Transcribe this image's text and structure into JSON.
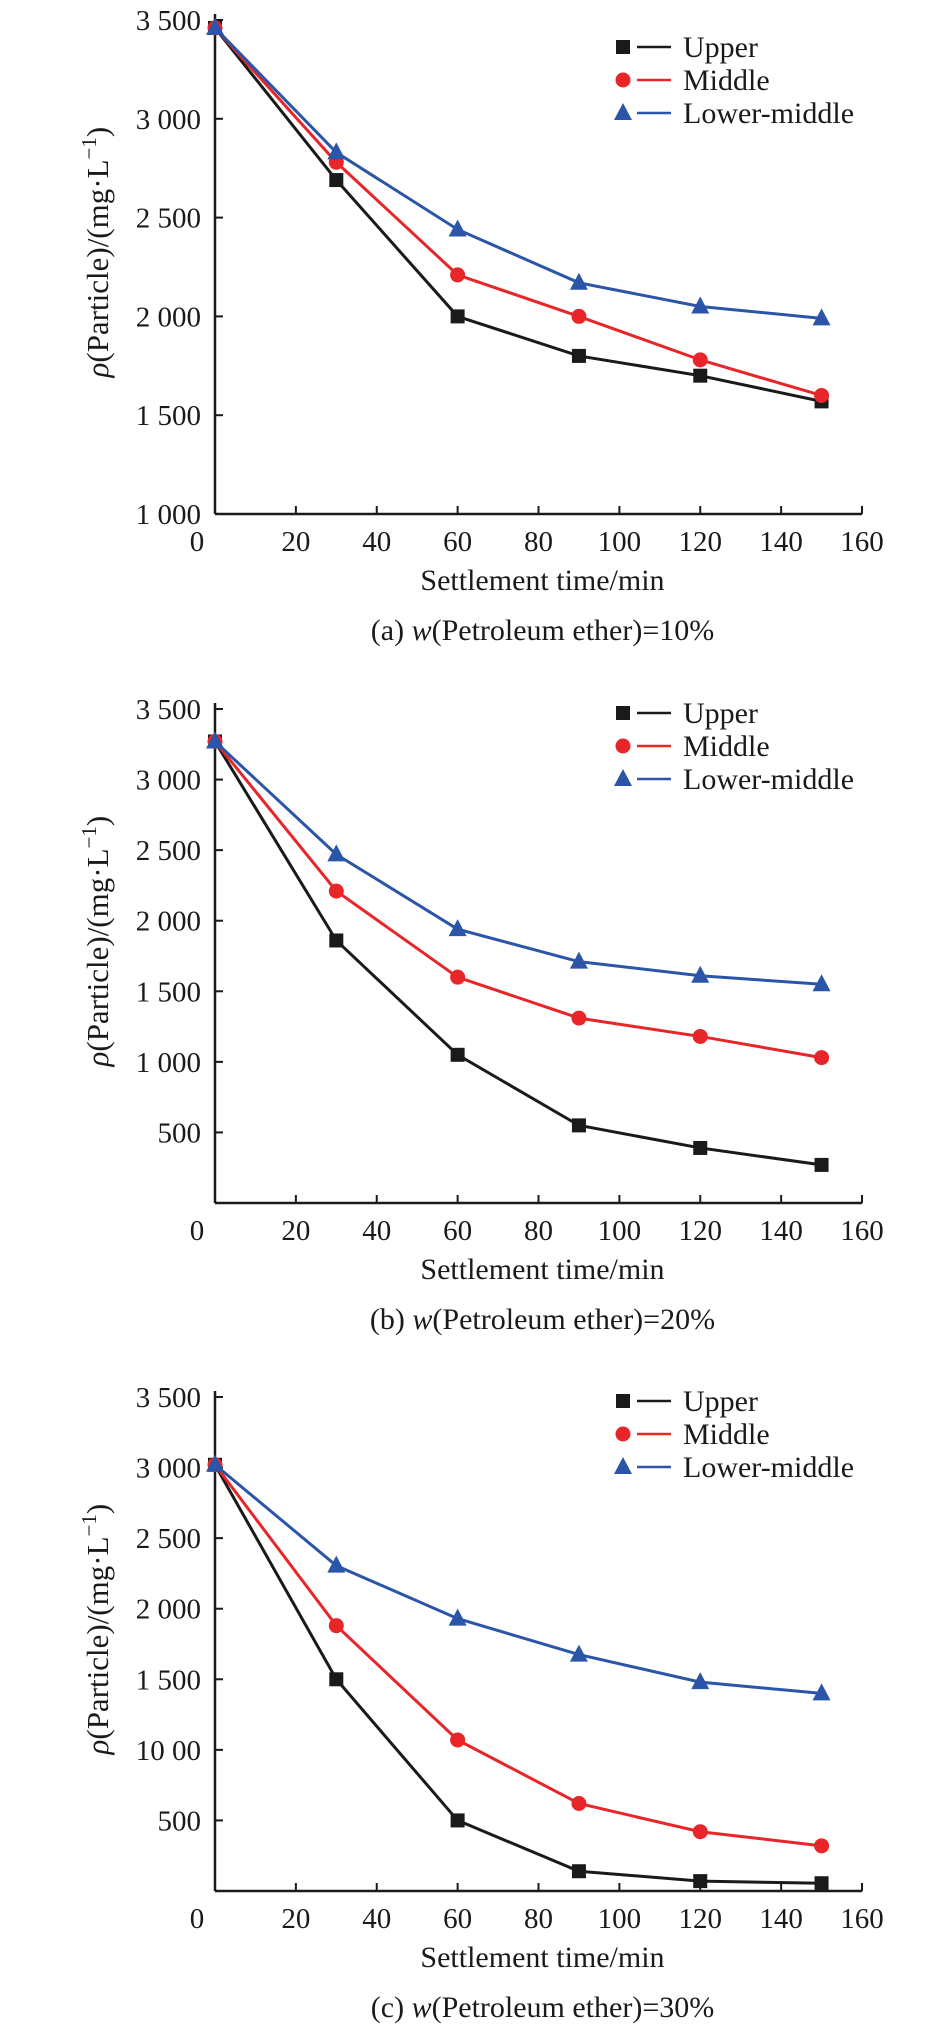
{
  "colors": {
    "Upper": "#1a1a1a",
    "Middle": "#e8262a",
    "Lower-middle": "#2a55a8"
  },
  "chart_data": [
    {
      "type": "line",
      "caption_prefix": "(a) ",
      "caption_var": "w",
      "caption_rest": "(Petroleum ether)=10%",
      "xlabel": "Settlement time/min",
      "ylabel_symbol": "ρ",
      "ylabel_rest": "(Particle)/(mg·L",
      "ylabel_sup": "−1",
      "ylabel_close": ")",
      "xlim": [
        0,
        160
      ],
      "ylim": [
        1000,
        3500
      ],
      "xticks": [
        0,
        20,
        40,
        60,
        80,
        100,
        120,
        140,
        160
      ],
      "xtick_labels": [
        "0",
        "20",
        "40",
        "60",
        "80",
        "100",
        "120",
        "140",
        "160"
      ],
      "yticks": [
        1000,
        1500,
        2000,
        2500,
        3000,
        3500
      ],
      "ytick_labels": [
        "1 000",
        "1 500",
        "2 000",
        "2 500",
        "3 000",
        "3 500"
      ],
      "grid": false,
      "legend_position": "top-right",
      "x": [
        0,
        30,
        60,
        90,
        120,
        150
      ],
      "series": [
        {
          "name": "Upper",
          "marker": "square",
          "values": [
            3460,
            2690,
            2000,
            1800,
            1700,
            1570
          ]
        },
        {
          "name": "Middle",
          "marker": "circle",
          "values": [
            3460,
            2780,
            2210,
            2000,
            1780,
            1600
          ]
        },
        {
          "name": "Lower-middle",
          "marker": "triangle",
          "values": [
            3460,
            2830,
            2440,
            2170,
            2050,
            1990
          ]
        }
      ]
    },
    {
      "type": "line",
      "caption_prefix": "(b) ",
      "caption_var": "w",
      "caption_rest": "(Petroleum ether)=20%",
      "xlabel": "Settlement time/min",
      "ylabel_symbol": "ρ",
      "ylabel_rest": "(Particle)/(mg·L",
      "ylabel_sup": "−1",
      "ylabel_close": ")",
      "xlim": [
        0,
        160
      ],
      "ylim": [
        0,
        3500
      ],
      "xticks": [
        0,
        20,
        40,
        60,
        80,
        100,
        120,
        140,
        160
      ],
      "xtick_labels": [
        "0",
        "20",
        "40",
        "60",
        "80",
        "100",
        "120",
        "140",
        "160"
      ],
      "yticks": [
        500,
        1000,
        1500,
        2000,
        2500,
        3000,
        3500
      ],
      "ytick_labels": [
        "500",
        "1 000",
        "1 500",
        "2 000",
        "2 500",
        "3 000",
        "3 500"
      ],
      "grid": false,
      "legend_position": "top-right",
      "x": [
        0,
        30,
        60,
        90,
        120,
        150
      ],
      "series": [
        {
          "name": "Upper",
          "marker": "square",
          "values": [
            3270,
            1860,
            1050,
            550,
            390,
            270
          ]
        },
        {
          "name": "Middle",
          "marker": "circle",
          "values": [
            3270,
            2210,
            1600,
            1310,
            1180,
            1030
          ]
        },
        {
          "name": "Lower-middle",
          "marker": "triangle",
          "values": [
            3270,
            2470,
            1940,
            1710,
            1610,
            1550
          ]
        }
      ]
    },
    {
      "type": "line",
      "caption_prefix": "(c) ",
      "caption_var": "w",
      "caption_rest": "(Petroleum ether)=30%",
      "xlabel": "Settlement time/min",
      "ylabel_symbol": "ρ",
      "ylabel_rest": "(Particle)/(mg·L",
      "ylabel_sup": "−1",
      "ylabel_close": ")",
      "xlim": [
        0,
        160
      ],
      "ylim": [
        0,
        3500
      ],
      "xticks": [
        0,
        20,
        40,
        60,
        80,
        100,
        120,
        140,
        160
      ],
      "xtick_labels": [
        "0",
        "20",
        "40",
        "60",
        "80",
        "100",
        "120",
        "140",
        "160"
      ],
      "yticks": [
        500,
        1000,
        1500,
        2000,
        2500,
        3000,
        3500
      ],
      "ytick_labels": [
        "500",
        "10 00",
        "1 500",
        "2 000",
        "2 500",
        "3 000",
        "3 500"
      ],
      "grid": false,
      "legend_position": "top-right",
      "x": [
        0,
        30,
        60,
        90,
        120,
        150
      ],
      "series": [
        {
          "name": "Upper",
          "marker": "square",
          "values": [
            3020,
            1500,
            500,
            140,
            70,
            55
          ]
        },
        {
          "name": "Middle",
          "marker": "circle",
          "values": [
            3020,
            1880,
            1070,
            620,
            420,
            320
          ]
        },
        {
          "name": "Lower-middle",
          "marker": "triangle",
          "values": [
            3020,
            2305,
            1930,
            1675,
            1480,
            1400
          ]
        }
      ]
    }
  ]
}
